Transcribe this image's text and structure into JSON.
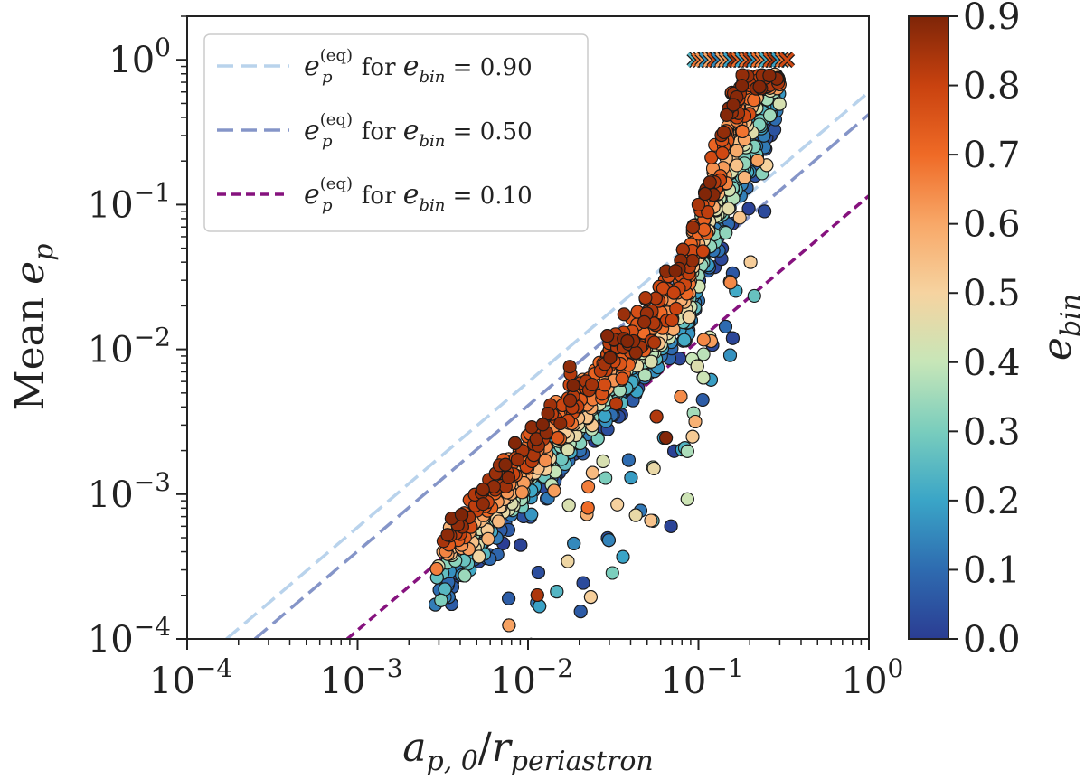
{
  "chart_data": {
    "type": "scatter",
    "title": "",
    "xscale": "log",
    "yscale": "log",
    "xlim": [
      0.0001,
      1
    ],
    "ylim": [
      0.0001,
      2
    ],
    "xlabel": "a_p,0 / r_periastron",
    "ylabel": "Mean e_p",
    "xlabel_parts": {
      "base": "a",
      "sub": "p, 0",
      "slash": "/",
      "base2": "r",
      "sub2": "periastron"
    },
    "ylabel_parts": {
      "prefix": "Mean ",
      "base": "e",
      "sub": "p"
    },
    "x_ticks": [
      {
        "value": 0.0001,
        "base": "10",
        "exp": "−4"
      },
      {
        "value": 0.001,
        "base": "10",
        "exp": "−3"
      },
      {
        "value": 0.01,
        "base": "10",
        "exp": "−2"
      },
      {
        "value": 0.1,
        "base": "10",
        "exp": "−1"
      },
      {
        "value": 1,
        "base": "10",
        "exp": "0"
      }
    ],
    "y_ticks": [
      {
        "value": 0.0001,
        "base": "10",
        "exp": "−4"
      },
      {
        "value": 0.001,
        "base": "10",
        "exp": "−3"
      },
      {
        "value": 0.01,
        "base": "10",
        "exp": "−2"
      },
      {
        "value": 0.1,
        "base": "10",
        "exp": "−1"
      },
      {
        "value": 1,
        "base": "10",
        "exp": "0"
      }
    ],
    "colorbar": {
      "label_base": "e",
      "label_sub": "bin",
      "range": [
        0.0,
        0.9
      ],
      "ticks": [
        "0.0",
        "0.1",
        "0.2",
        "0.3",
        "0.4",
        "0.5",
        "0.6",
        "0.7",
        "0.8",
        "0.9"
      ],
      "colormap_stops": [
        "#2b3d93",
        "#2e6bb0",
        "#3aa5c7",
        "#79cdbd",
        "#c7e6b8",
        "#f6d3a0",
        "#f8a868",
        "#ef6a26",
        "#c9420f",
        "#7e2508"
      ]
    },
    "legend": {
      "location": "upper-left",
      "entries": [
        {
          "e": "e",
          "sub": "p",
          "sup": "(eq)",
          "mid": " for ",
          "e2": "e",
          "sub2": "bin",
          "eq": " = 0.90",
          "ebin": 0.9,
          "color": "#b9d3ec",
          "dash": "long"
        },
        {
          "e": "e",
          "sub": "p",
          "sup": "(eq)",
          "mid": " for ",
          "e2": "e",
          "sub2": "bin",
          "eq": " = 0.50",
          "ebin": 0.5,
          "color": "#8595c8",
          "dash": "long"
        },
        {
          "e": "e",
          "sub": "p",
          "sup": "(eq)",
          "mid": " for ",
          "e2": "e",
          "sub2": "bin",
          "eq": " = 0.10",
          "ebin": 0.1,
          "color": "#86127e",
          "dash": "short"
        }
      ]
    },
    "lines": [
      {
        "name": "eq e_bin=0.90",
        "points": [
          [
            0.00017,
            0.0001
          ],
          [
            1,
            0.6
          ]
        ],
        "color": "#b9d3ec",
        "dash": "long"
      },
      {
        "name": "eq e_bin=0.50",
        "points": [
          [
            0.00025,
            0.0001
          ],
          [
            1,
            0.42
          ]
        ],
        "color": "#8595c8",
        "dash": "long"
      },
      {
        "name": "eq e_bin=0.10",
        "points": [
          [
            0.00087,
            0.0001
          ],
          [
            1,
            0.115
          ]
        ],
        "color": "#86127e",
        "dash": "short"
      }
    ],
    "scatter_model": {
      "description": "several thousand simulated planets; mean e_p rises roughly as (a_p,0/r_periastron)^1.3; color encodes e_bin (higher e_bin -> higher e_p at fixed x)",
      "n_points": 2600,
      "x_range": [
        0.0028,
        0.3
      ],
      "slope": 1.3,
      "upper_cutoff_x": 0.27,
      "marker": "circle",
      "edgecolor": "#1a1a1a"
    },
    "unstable_markers": {
      "description": "x markers at mean e_p = 1 for unstable systems",
      "y": 1,
      "x_range": [
        0.095,
        0.33
      ],
      "count": 24,
      "marker": "x"
    }
  }
}
